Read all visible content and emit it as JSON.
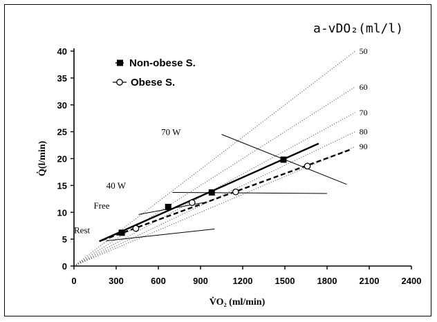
{
  "chart_data": {
    "type": "line",
    "xlabel": "V̇O₂ (ml/min)",
    "ylabel": "Q̇(l/min)",
    "xlim": [
      0,
      2400
    ],
    "ylim": [
      0,
      40
    ],
    "xticks": [
      0,
      300,
      600,
      900,
      1200,
      1500,
      1800,
      2100,
      2400
    ],
    "yticks": [
      0,
      5,
      10,
      15,
      20,
      25,
      30,
      35,
      40
    ],
    "grid": false,
    "legend_position": "top-left",
    "iso_lines_title": "a-vDO₂(ml/l)",
    "iso_lines": [
      {
        "label": "50",
        "avdo2": 50
      },
      {
        "label": "60",
        "avdo2": 60
      },
      {
        "label": "70",
        "avdo2": 70
      },
      {
        "label": "80",
        "avdo2": 80
      },
      {
        "label": "90",
        "avdo2": 90
      }
    ],
    "series": [
      {
        "name": "Non-obese S.",
        "marker": "filled-square",
        "line_style": "solid",
        "x": [
          340,
          670,
          980,
          1490
        ],
        "y": [
          6.2,
          11.0,
          13.7,
          19.8
        ],
        "fit": {
          "x": [
            180,
            1740
          ],
          "y": [
            4.6,
            22.8
          ]
        }
      },
      {
        "name": "Obese S.",
        "marker": "open-circle",
        "line_style": "dashed",
        "x": [
          440,
          840,
          1150,
          1660
        ],
        "y": [
          7.0,
          11.8,
          13.8,
          18.6
        ],
        "fit": {
          "x": [
            200,
            1970
          ],
          "y": [
            4.8,
            21.7
          ]
        }
      }
    ],
    "annotations": [
      {
        "text": "Rest",
        "x": 0,
        "y": 6.1
      },
      {
        "text": "Free",
        "x": 140,
        "y": 10.7
      },
      {
        "text": "40 W",
        "x": 230,
        "y": 14.4
      },
      {
        "text": "70 W",
        "x": 620,
        "y": 24.4
      }
    ],
    "workload_lines": [
      {
        "x": [
          230,
          1000
        ],
        "y": [
          4.7,
          6.9
        ]
      },
      {
        "x": [
          460,
          920
        ],
        "y": [
          9.6,
          11.8
        ]
      },
      {
        "x": [
          700,
          1800
        ],
        "y": [
          13.7,
          13.5
        ]
      },
      {
        "x": [
          1050,
          1940
        ],
        "y": [
          24.5,
          15.2
        ]
      }
    ]
  }
}
